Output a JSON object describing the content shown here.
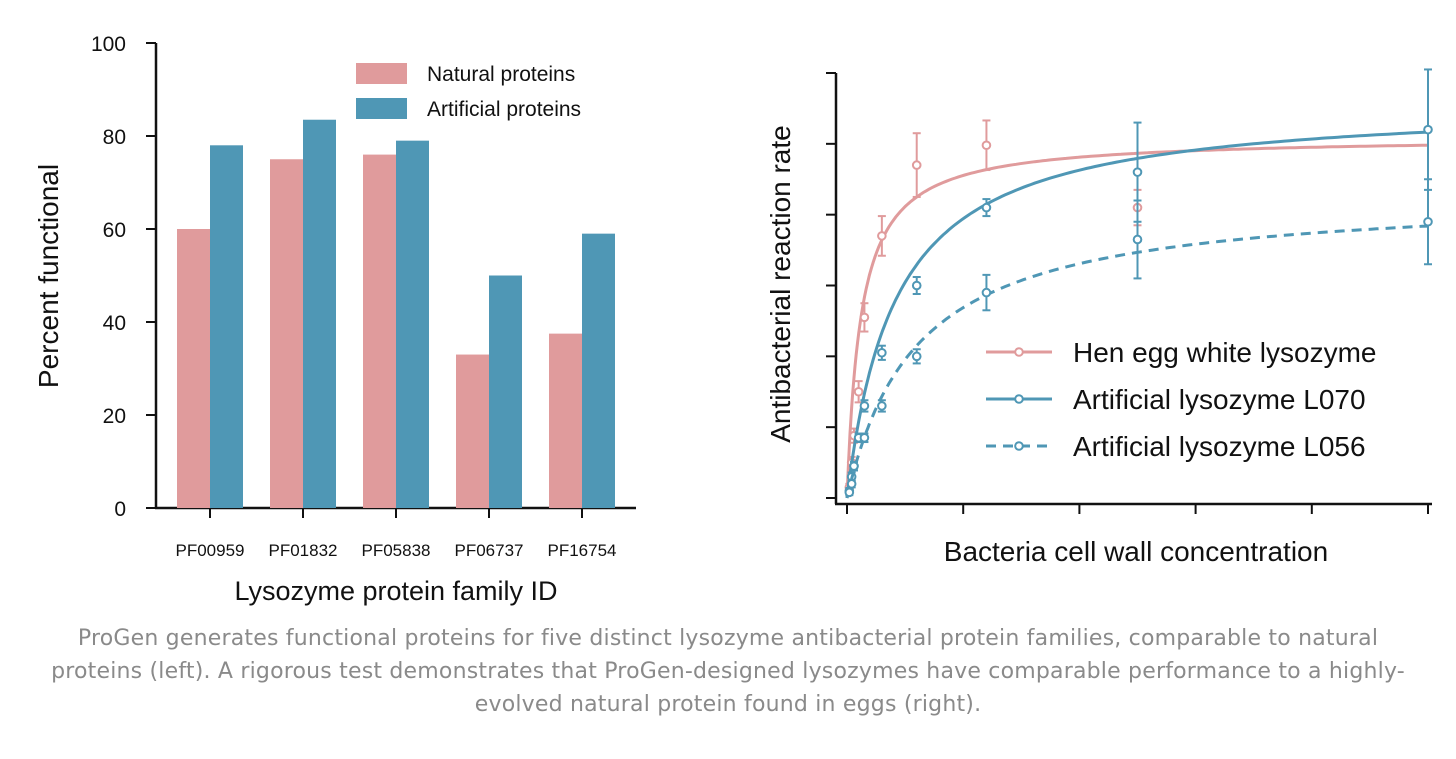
{
  "colors": {
    "natural": "#e09b9c",
    "artificial": "#4f97b5",
    "axis": "#111111",
    "caption": "#8a8a8a"
  },
  "caption": "ProGen generates functional proteins for five distinct lysozyme antibacterial protein families, comparable to natural proteins (left). A rigorous test demonstrates that ProGen-designed lysozymes have comparable performance to a highly-evolved natural protein found in eggs (right).",
  "chart_data": [
    {
      "type": "bar",
      "categories": [
        "PF00959",
        "PF01832",
        "PF05838",
        "PF06737",
        "PF16754"
      ],
      "series": [
        {
          "name": "Natural proteins",
          "values": [
            60,
            75,
            76,
            33,
            37.5
          ]
        },
        {
          "name": "Artificial proteins",
          "values": [
            78,
            83.5,
            79,
            50,
            59
          ]
        }
      ],
      "xlabel": "Lysozyme protein family ID",
      "ylabel": "Percent functional",
      "ylim": [
        0,
        100
      ],
      "yticks": [
        "0",
        "20",
        "40",
        "60",
        "80",
        "100"
      ],
      "grid": false,
      "legend": "top-right"
    },
    {
      "type": "line",
      "xlabel": "Bacteria cell wall concentration",
      "ylabel": "Antibacterial reaction rate",
      "xlim": [
        0,
        5
      ],
      "ylim": [
        0,
        6
      ],
      "tick_labels_shown": false,
      "legend": "bottom-right",
      "series": [
        {
          "name": "Hen egg white lysozyme",
          "style": "solid",
          "color": "natural",
          "points": [
            {
              "x": 0.02,
              "y": 0.15,
              "err": 0.05
            },
            {
              "x": 0.04,
              "y": 0.5,
              "err": 0.08
            },
            {
              "x": 0.06,
              "y": 0.88,
              "err": 0.1
            },
            {
              "x": 0.1,
              "y": 1.5,
              "err": 0.15
            },
            {
              "x": 0.15,
              "y": 2.55,
              "err": 0.2
            },
            {
              "x": 0.3,
              "y": 3.7,
              "err": 0.28
            },
            {
              "x": 0.6,
              "y": 4.7,
              "err": 0.45
            },
            {
              "x": 1.2,
              "y": 4.98,
              "err": 0.35
            },
            {
              "x": 2.5,
              "y": 4.1,
              "err": 0.25
            }
          ],
          "fit": {
            "model": "michaelis-menten",
            "vmax": 5.1,
            "km": 0.12
          }
        },
        {
          "name": "Artificial lysozyme L070",
          "style": "solid",
          "color": "artificial",
          "points": [
            {
              "x": 0.02,
              "y": 0.1,
              "err": 0.04
            },
            {
              "x": 0.04,
              "y": 0.3,
              "err": 0.06
            },
            {
              "x": 0.06,
              "y": 0.45,
              "err": 0.06
            },
            {
              "x": 0.1,
              "y": 0.85,
              "err": 0.06
            },
            {
              "x": 0.15,
              "y": 1.3,
              "err": 0.08
            },
            {
              "x": 0.3,
              "y": 2.05,
              "err": 0.1
            },
            {
              "x": 0.6,
              "y": 3.0,
              "err": 0.12
            },
            {
              "x": 1.2,
              "y": 4.1,
              "err": 0.12
            },
            {
              "x": 2.5,
              "y": 4.6,
              "err": 0.7
            },
            {
              "x": 5.0,
              "y": 5.2,
              "err": 0.85
            }
          ],
          "fit": {
            "model": "michaelis-menten",
            "vmax": 5.6,
            "km": 0.42
          }
        },
        {
          "name": "Artificial lysozyme L056",
          "style": "dashed",
          "color": "artificial",
          "points": [
            {
              "x": 0.02,
              "y": 0.08,
              "err": 0.04
            },
            {
              "x": 0.04,
              "y": 0.2,
              "err": 0.05
            },
            {
              "x": 0.06,
              "y": 0.45,
              "err": 0.06
            },
            {
              "x": 0.15,
              "y": 0.85,
              "err": 0.06
            },
            {
              "x": 0.3,
              "y": 1.3,
              "err": 0.08
            },
            {
              "x": 0.6,
              "y": 2.0,
              "err": 0.1
            },
            {
              "x": 1.2,
              "y": 2.9,
              "err": 0.25
            },
            {
              "x": 2.5,
              "y": 3.65,
              "err": 0.55
            },
            {
              "x": 5.0,
              "y": 3.9,
              "err": 0.6
            }
          ],
          "fit": {
            "model": "michaelis-menten",
            "vmax": 4.3,
            "km": 0.6
          }
        }
      ]
    }
  ]
}
